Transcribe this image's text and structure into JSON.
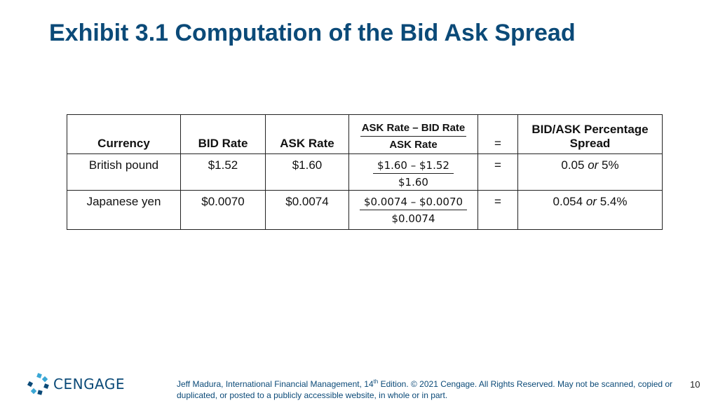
{
  "title": "Exhibit 3.1 Computation of the Bid Ask Spread",
  "table": {
    "headers": {
      "currency": "Currency",
      "bid": "BID Rate",
      "ask": "ASK Rate",
      "formula_numerator": "ASK Rate – BID Rate",
      "formula_denominator": "ASK Rate",
      "equals": "=",
      "spread": "BID/ASK Percentage Spread"
    },
    "rows": [
      {
        "currency": "British pound",
        "bid": "$1.52",
        "ask": "$1.60",
        "numerator": "$1.60 – $1.52",
        "denominator": "$1.60",
        "equals": "=",
        "spread_value": "0.05",
        "spread_or": "or",
        "spread_pct": "5%"
      },
      {
        "currency": "Japanese yen",
        "bid": "$0.0070",
        "ask": "$0.0074",
        "numerator": "$0.0074 – $0.0070",
        "denominator": "$0.0074",
        "equals": "=",
        "spread_value": "0.054",
        "spread_or": "or",
        "spread_pct": "5.4%"
      }
    ]
  },
  "logo": {
    "text": "CENGAGE",
    "icon": "cengage-logo-icon",
    "color": "#0b4a78"
  },
  "footer": {
    "text_before_sup": "Jeff Madura, International Financial Management, 14",
    "sup": "th",
    "text_after_sup": " Edition. © 2021 Cengage. All Rights Reserved. May not be scanned, copied or duplicated, or posted to a publicly accessible website, in whole or in part."
  },
  "page_number": "10",
  "colors": {
    "title": "#0b4a78",
    "logo_accent": "#3aa7d5"
  }
}
